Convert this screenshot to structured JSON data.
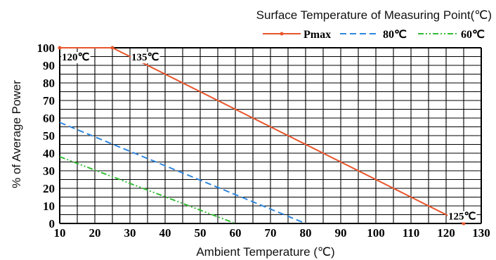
{
  "chart_data": {
    "type": "line",
    "title": "Surface Temperature of Measuring Point(℃)",
    "xlabel": "Ambient Temperature (℃)",
    "ylabel": "% of Average Power",
    "xlim": [
      10,
      130
    ],
    "ylim": [
      0,
      100
    ],
    "x_ticks": [
      "10",
      "20",
      "30",
      "40",
      "50",
      "60",
      "70",
      "80",
      "90",
      "100",
      "110",
      "120",
      "130"
    ],
    "y_ticks": [
      "0",
      "10",
      "20",
      "30",
      "40",
      "50",
      "60",
      "70",
      "80",
      "90",
      "100"
    ],
    "grid": true,
    "legend_position": "top-right",
    "series": [
      {
        "name": "Pmax",
        "color": "#e8552a",
        "style": "solid",
        "marker": "dot",
        "points": [
          [
            10,
            100
          ],
          [
            25,
            100
          ],
          [
            125,
            0
          ]
        ]
      },
      {
        "name": "80℃",
        "color": "#2f86de",
        "style": "dashed",
        "points": [
          [
            10,
            57.5
          ],
          [
            80,
            0
          ]
        ]
      },
      {
        "name": "60℃",
        "color": "#33bb33",
        "style": "dashdotdot",
        "points": [
          [
            10,
            38
          ],
          [
            60,
            0
          ]
        ]
      }
    ],
    "annotations": [
      {
        "text": "120℃",
        "x": 10,
        "y": 100
      },
      {
        "text": "135℃",
        "x": 30,
        "y": 100
      },
      {
        "text": "125℃",
        "x": 125,
        "y": 5
      }
    ]
  }
}
